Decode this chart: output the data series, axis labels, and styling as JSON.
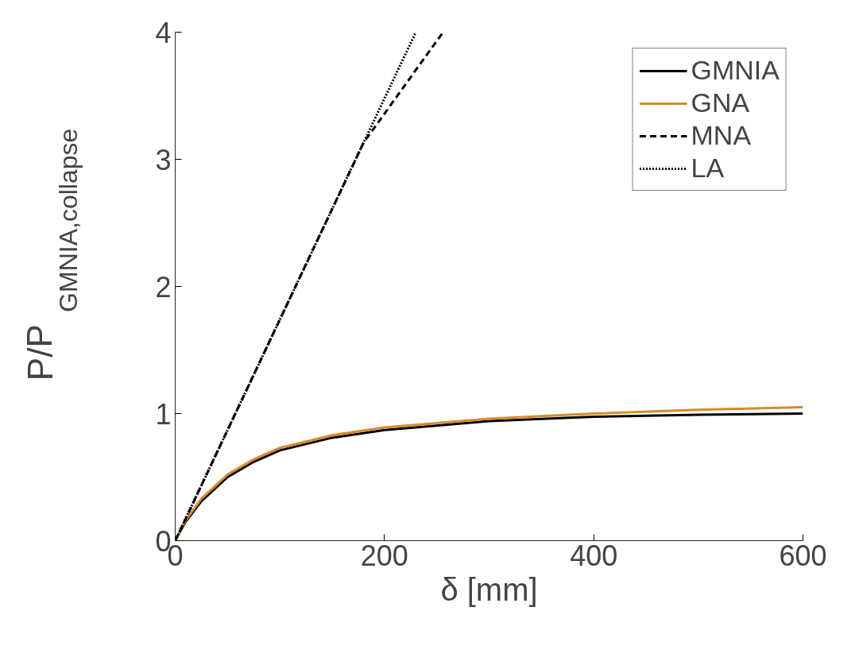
{
  "chart_data": {
    "type": "line",
    "xlabel": "δ [mm]",
    "ylabel": "P/P$_{GMNIA,collapse}$",
    "xlim": [
      0,
      600
    ],
    "xticks": [
      0,
      200,
      400,
      600
    ],
    "ylim": [
      0,
      4
    ],
    "yticks": [
      0,
      1,
      2,
      3,
      4
    ],
    "grid": false,
    "legend": "top right",
    "series": [
      {
        "name": "GMNIA",
        "color": "#000000",
        "line_style": "solid",
        "x": [
          0,
          10,
          25,
          50,
          75,
          100,
          150,
          200,
          300,
          400,
          500,
          600
        ],
        "values": [
          0,
          0.15,
          0.31,
          0.5,
          0.62,
          0.71,
          0.81,
          0.87,
          0.94,
          0.975,
          0.99,
          1.0
        ]
      },
      {
        "name": "GNA",
        "color": "#d98a2b",
        "line_style": "solid",
        "x": [
          0,
          10,
          25,
          50,
          75,
          100,
          150,
          200,
          300,
          400,
          500,
          600
        ],
        "values": [
          0,
          0.16,
          0.33,
          0.52,
          0.64,
          0.73,
          0.83,
          0.89,
          0.96,
          1.0,
          1.03,
          1.05
        ]
      },
      {
        "name": "MNA",
        "color": "#000000",
        "line_style": "dashed",
        "x": [
          0,
          180,
          256
        ],
        "values": [
          0,
          3.13,
          4
        ]
      },
      {
        "name": "LA",
        "color": "#000000",
        "line_style": "dotted",
        "x": [
          0,
          230
        ],
        "values": [
          0,
          4
        ]
      }
    ]
  }
}
